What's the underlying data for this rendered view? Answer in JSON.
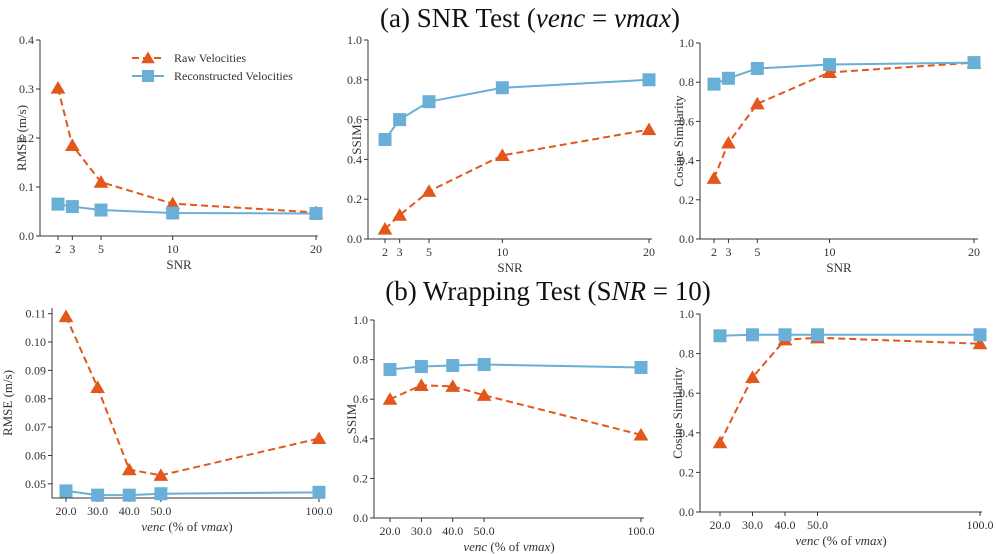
{
  "section_a_title": "(a) SNR Test (venc = vmax)",
  "section_b_title": "(b) Wrapping Test (SNR = 10)",
  "legend": {
    "raw": "Raw Velocities",
    "reconstructed": "Reconstructed Velocities",
    "location": "top-right of first panel"
  },
  "colors": {
    "raw": "#e2571c",
    "reconstructed": "#6aafd8",
    "axis": "#333333"
  },
  "chart_data": [
    {
      "id": "a1",
      "type": "line",
      "xlabel": "SNR",
      "ylabel": "RMSE (m/s)",
      "xlim": [
        1.5,
        20.5
      ],
      "ylim": [
        0,
        0.4
      ],
      "xticks": [
        2,
        3,
        5,
        10,
        20
      ],
      "xtick_labels": [
        "2",
        "3",
        "5",
        "10",
        "20"
      ],
      "yticks": [
        0,
        0.1,
        0.2,
        0.3,
        0.4
      ],
      "ytick_labels": [
        "0.0",
        "0.1",
        "0.2",
        "0.3",
        "0.4"
      ],
      "x": [
        2,
        3,
        5,
        10,
        20
      ],
      "series": [
        {
          "name": "Raw Velocities",
          "values": [
            0.302,
            0.185,
            0.11,
            0.066,
            0.048
          ]
        },
        {
          "name": "Reconstructed Velocities",
          "values": [
            0.065,
            0.06,
            0.053,
            0.047,
            0.046
          ]
        }
      ]
    },
    {
      "id": "a2",
      "type": "line",
      "xlabel": "SNR",
      "ylabel": "SSIM",
      "xlim": [
        1.5,
        20.5
      ],
      "ylim": [
        0,
        1.0
      ],
      "xticks": [
        2,
        3,
        5,
        10,
        20
      ],
      "xtick_labels": [
        "2",
        "3",
        "5",
        "10",
        "20"
      ],
      "yticks": [
        0,
        0.2,
        0.4,
        0.6,
        0.8,
        1.0
      ],
      "ytick_labels": [
        "0.0",
        "0.2",
        "0.4",
        "0.6",
        "0.8",
        "1.0"
      ],
      "x": [
        2,
        3,
        5,
        10,
        20
      ],
      "series": [
        {
          "name": "Raw Velocities",
          "values": [
            0.05,
            0.12,
            0.24,
            0.42,
            0.55
          ]
        },
        {
          "name": "Reconstructed Velocities",
          "values": [
            0.5,
            0.6,
            0.69,
            0.76,
            0.8
          ]
        }
      ]
    },
    {
      "id": "a3",
      "type": "line",
      "xlabel": "SNR",
      "ylabel": "Cosine Similarity",
      "xlim": [
        1.5,
        20.5
      ],
      "ylim": [
        0,
        1.0
      ],
      "xticks": [
        2,
        3,
        5,
        10,
        20
      ],
      "xtick_labels": [
        "2",
        "3",
        "5",
        "10",
        "20"
      ],
      "yticks": [
        0,
        0.2,
        0.4,
        0.6,
        0.8,
        1.0
      ],
      "ytick_labels": [
        "0.0",
        "0.2",
        "0.4",
        "0.6",
        "0.8",
        "1.0"
      ],
      "x": [
        2,
        3,
        5,
        10,
        20
      ],
      "series": [
        {
          "name": "Raw Velocities",
          "values": [
            0.31,
            0.49,
            0.69,
            0.85,
            0.9
          ]
        },
        {
          "name": "Reconstructed Velocities",
          "values": [
            0.79,
            0.82,
            0.87,
            0.89,
            0.9
          ]
        }
      ]
    },
    {
      "id": "b1",
      "type": "line",
      "xlabel": "venc (% of vmax)",
      "ylabel": "RMSE (m/s)",
      "xlim": [
        16,
        102
      ],
      "ylim": [
        0.045,
        0.112
      ],
      "xticks": [
        20,
        30,
        40,
        50,
        100
      ],
      "xtick_labels": [
        "20.0",
        "30.0",
        "40.0",
        "50.0",
        "100.0"
      ],
      "yticks": [
        0.05,
        0.06,
        0.07,
        0.08,
        0.09,
        0.1,
        0.11
      ],
      "ytick_labels": [
        "0.05",
        "0.06",
        "0.07",
        "0.08",
        "0.09",
        "0.10",
        "0.11"
      ],
      "x": [
        20,
        30,
        40,
        50,
        100
      ],
      "series": [
        {
          "name": "Raw Velocities",
          "values": [
            0.109,
            0.084,
            0.055,
            0.053,
            0.066
          ]
        },
        {
          "name": "Reconstructed Velocities",
          "values": [
            0.0475,
            0.046,
            0.046,
            0.0465,
            0.047
          ]
        }
      ]
    },
    {
      "id": "b2",
      "type": "line",
      "xlabel": "venc (% of vmax)",
      "ylabel": "SSIM",
      "xlim": [
        16,
        102
      ],
      "ylim": [
        0,
        1.0
      ],
      "xticks": [
        20,
        30,
        40,
        50,
        100
      ],
      "xtick_labels": [
        "20.0",
        "30.0",
        "40.0",
        "50.0",
        "100.0"
      ],
      "yticks": [
        0,
        0.2,
        0.4,
        0.6,
        0.8,
        1.0
      ],
      "ytick_labels": [
        "0.0",
        "0.2",
        "0.4",
        "0.6",
        "0.8",
        "1.0"
      ],
      "x": [
        20,
        30,
        40,
        50,
        100
      ],
      "series": [
        {
          "name": "Raw Velocities",
          "values": [
            0.6,
            0.67,
            0.665,
            0.62,
            0.42
          ]
        },
        {
          "name": "Reconstructed Velocities",
          "values": [
            0.75,
            0.765,
            0.77,
            0.775,
            0.76
          ]
        }
      ]
    },
    {
      "id": "b3",
      "type": "line",
      "xlabel": "venc (% of vmax)",
      "ylabel": "Cosine Similarity",
      "xlim": [
        16,
        102
      ],
      "ylim": [
        0,
        1.0
      ],
      "xticks": [
        20,
        30,
        40,
        50,
        100
      ],
      "xtick_labels": [
        "20.0",
        "30.0",
        "40.0",
        "50.0",
        "100.0"
      ],
      "yticks": [
        0,
        0.2,
        0.4,
        0.6,
        0.8,
        1.0
      ],
      "ytick_labels": [
        "0.0",
        "0.2",
        "0.4",
        "0.6",
        "0.8",
        "1.0"
      ],
      "x": [
        20,
        30,
        40,
        50,
        100
      ],
      "series": [
        {
          "name": "Raw Velocities",
          "values": [
            0.35,
            0.68,
            0.87,
            0.88,
            0.85
          ]
        },
        {
          "name": "Reconstructed Velocities",
          "values": [
            0.89,
            0.895,
            0.895,
            0.895,
            0.895
          ]
        }
      ]
    }
  ]
}
